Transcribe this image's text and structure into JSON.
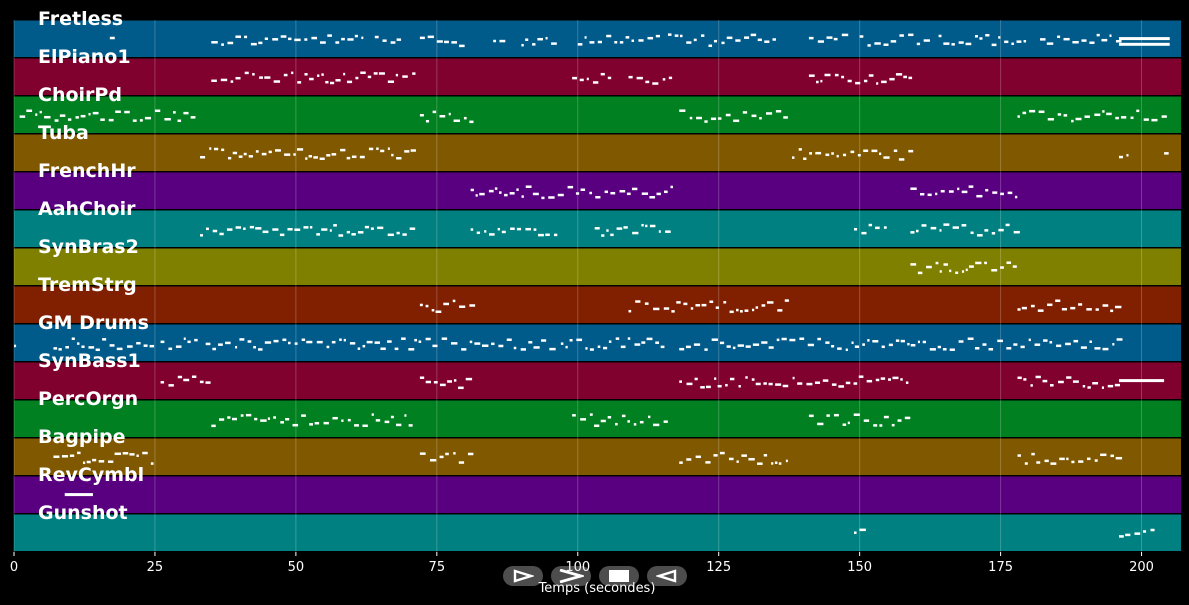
{
  "chart_data": {
    "type": "piano-roll",
    "xlabel": "Temps (secondes)",
    "xlim": [
      0,
      207
    ],
    "xticks": [
      0,
      25,
      50,
      75,
      100,
      125,
      150,
      175,
      200
    ],
    "tracks": [
      {
        "name": "Fretless",
        "color": "#005a8a",
        "segments": [
          [
            17,
            18
          ],
          [
            35,
            62
          ],
          [
            64,
            68
          ],
          [
            72,
            80
          ],
          [
            85,
            87
          ],
          [
            90,
            97
          ],
          [
            100,
            115
          ],
          [
            116,
            135
          ],
          [
            141,
            148
          ],
          [
            150,
            162
          ],
          [
            164,
            180
          ],
          [
            182,
            196
          ]
        ],
        "long_notes": [
          [
            196,
            205
          ]
        ]
      },
      {
        "name": "ElPiano1",
        "color": "#80002e",
        "segments": [
          [
            35,
            71
          ],
          [
            99,
            106
          ],
          [
            109,
            117
          ],
          [
            141,
            159
          ]
        ],
        "long_notes": []
      },
      {
        "name": "ChoirPd",
        "color": "#008020",
        "segments": [
          [
            1,
            25
          ],
          [
            25,
            32
          ],
          [
            72,
            81
          ],
          [
            118,
            137
          ],
          [
            178,
            204
          ]
        ],
        "long_notes": []
      },
      {
        "name": "Tuba",
        "color": "#805800",
        "segments": [
          [
            33,
            71
          ],
          [
            138,
            159
          ],
          [
            196,
            198
          ],
          [
            204,
            205
          ]
        ],
        "long_notes": []
      },
      {
        "name": "FrenchHr",
        "color": "#580080",
        "segments": [
          [
            81,
            117
          ],
          [
            159,
            178
          ]
        ],
        "long_notes": []
      },
      {
        "name": "AahChoir",
        "color": "#008080",
        "segments": [
          [
            33,
            71
          ],
          [
            81,
            97
          ],
          [
            103,
            116
          ],
          [
            149,
            155
          ],
          [
            159,
            178
          ]
        ],
        "long_notes": []
      },
      {
        "name": "SynBras2",
        "color": "#808000",
        "segments": [
          [
            159,
            178
          ]
        ],
        "long_notes": []
      },
      {
        "name": "TremStrg",
        "color": "#802000",
        "segments": [
          [
            72,
            81
          ],
          [
            109,
            137
          ],
          [
            178,
            197
          ]
        ],
        "long_notes": []
      },
      {
        "name": "GM Drums",
        "color": "#005a8a",
        "segments": [
          [
            0,
            1
          ],
          [
            7,
            25
          ],
          [
            26,
            33
          ],
          [
            34,
            65
          ],
          [
            65,
            70
          ],
          [
            71,
            96
          ],
          [
            97,
            116
          ],
          [
            118,
            197
          ]
        ],
        "long_notes": []
      },
      {
        "name": "SynBass1",
        "color": "#80002e",
        "segments": [
          [
            26,
            34
          ],
          [
            72,
            81
          ],
          [
            118,
            159
          ],
          [
            178,
            196
          ]
        ],
        "long_notes": [
          [
            196,
            204
          ]
        ]
      },
      {
        "name": "PercOrgn",
        "color": "#008020",
        "segments": [
          [
            35,
            71
          ],
          [
            99,
            116
          ],
          [
            141,
            159
          ]
        ],
        "long_notes": []
      },
      {
        "name": "Bagpipe",
        "color": "#805800",
        "segments": [
          [
            7,
            25
          ],
          [
            72,
            81
          ],
          [
            118,
            137
          ],
          [
            178,
            196
          ]
        ],
        "long_notes": []
      },
      {
        "name": "RevCymbl",
        "color": "#580080",
        "segments": [],
        "long_notes": [
          [
            9,
            14
          ]
        ]
      },
      {
        "name": "Gunshot",
        "color": "#008080",
        "segments": [
          [
            149,
            150
          ],
          [
            196,
            202
          ]
        ],
        "long_notes": []
      }
    ]
  },
  "transport": {
    "play_icon": "play-triangle-icon",
    "forward_icon": "chevron-right-icon",
    "stop_icon": "stop-square-icon",
    "back_icon": "triangle-left-icon"
  }
}
